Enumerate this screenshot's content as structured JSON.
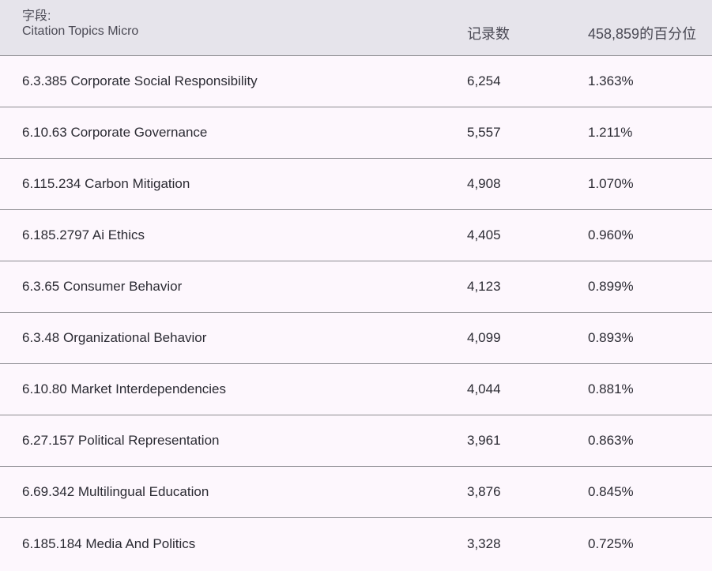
{
  "header": {
    "field_label": "字段:",
    "field_name": "Citation Topics Micro",
    "count_label": "记录数",
    "pct_label": "458,859的百分位"
  },
  "rows": [
    {
      "topic": "6.3.385 Corporate Social Responsibility",
      "count": "6,254",
      "pct": "1.363%"
    },
    {
      "topic": "6.10.63 Corporate Governance",
      "count": "5,557",
      "pct": "1.211%"
    },
    {
      "topic": "6.115.234 Carbon Mitigation",
      "count": "4,908",
      "pct": "1.070%"
    },
    {
      "topic": "6.185.2797 Ai Ethics",
      "count": "4,405",
      "pct": "0.960%"
    },
    {
      "topic": "6.3.65 Consumer Behavior",
      "count": "4,123",
      "pct": "0.899%"
    },
    {
      "topic": "6.3.48 Organizational Behavior",
      "count": "4,099",
      "pct": "0.893%"
    },
    {
      "topic": "6.10.80 Market Interdependencies",
      "count": "4,044",
      "pct": "0.881%"
    },
    {
      "topic": "6.27.157 Political Representation",
      "count": "3,961",
      "pct": "0.863%"
    },
    {
      "topic": "6.69.342 Multilingual Education",
      "count": "3,876",
      "pct": "0.845%"
    },
    {
      "topic": "6.185.184 Media And Politics",
      "count": "3,328",
      "pct": "0.725%"
    }
  ]
}
